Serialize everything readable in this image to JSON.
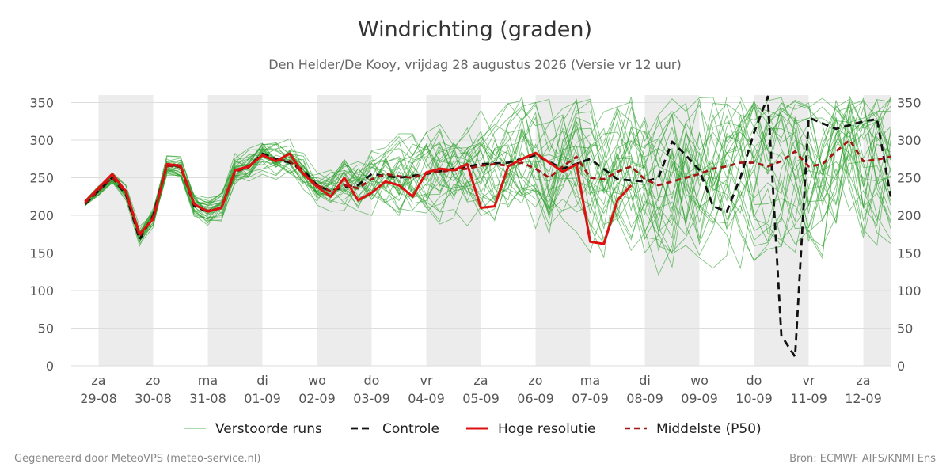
{
  "chart_data": {
    "type": "line",
    "title": "Windrichting (graden)",
    "subtitle": "Den Helder/De Kooy, vrijdag 28 augustus 2026 (Versie vr 12 uur)",
    "ylim": [
      0,
      360
    ],
    "yticks": [
      0,
      50,
      100,
      150,
      200,
      250,
      300,
      350
    ],
    "x_start": "2026-08-28T12:00",
    "x_end": "2026-09-12T12:00",
    "day_ticks": [
      {
        "date": "2026-08-29",
        "day": "za",
        "label": "29-08"
      },
      {
        "date": "2026-08-30",
        "day": "zo",
        "label": "30-08"
      },
      {
        "date": "2026-08-31",
        "day": "ma",
        "label": "31-08"
      },
      {
        "date": "2026-09-01",
        "day": "di",
        "label": "01-09"
      },
      {
        "date": "2026-09-02",
        "day": "wo",
        "label": "02-09"
      },
      {
        "date": "2026-09-03",
        "day": "do",
        "label": "03-09"
      },
      {
        "date": "2026-09-04",
        "day": "vr",
        "label": "04-09"
      },
      {
        "date": "2026-09-05",
        "day": "za",
        "label": "05-09"
      },
      {
        "date": "2026-09-06",
        "day": "zo",
        "label": "06-09"
      },
      {
        "date": "2026-09-07",
        "day": "ma",
        "label": "07-09"
      },
      {
        "date": "2026-09-08",
        "day": "di",
        "label": "08-09"
      },
      {
        "date": "2026-09-09",
        "day": "wo",
        "label": "09-09"
      },
      {
        "date": "2026-09-10",
        "day": "do",
        "label": "10-09"
      },
      {
        "date": "2026-09-11",
        "day": "vr",
        "label": "11-09"
      },
      {
        "date": "2026-09-12",
        "day": "za",
        "label": "12-09"
      }
    ],
    "shaded_days": [
      "2026-08-29",
      "2026-08-31",
      "2026-09-02",
      "2026-09-04",
      "2026-09-06",
      "2026-09-08",
      "2026-09-10",
      "2026-09-12"
    ],
    "legend_placement": "bottom",
    "series": [
      {
        "name": "Controle",
        "style": "dashed",
        "color": "#111111",
        "x": [
          "2026-08-28T18:00",
          "2026-08-29T06:00",
          "2026-08-29T12:00",
          "2026-08-29T18:00",
          "2026-08-30T00:00",
          "2026-08-30T06:00",
          "2026-08-30T12:00",
          "2026-08-30T18:00",
          "2026-08-31T00:00",
          "2026-08-31T06:00",
          "2026-08-31T12:00",
          "2026-08-31T18:00",
          "2026-09-01T00:00",
          "2026-09-01T06:00",
          "2026-09-01T12:00",
          "2026-09-01T18:00",
          "2026-09-02T00:00",
          "2026-09-02T06:00",
          "2026-09-02T12:00",
          "2026-09-02T18:00",
          "2026-09-03T00:00",
          "2026-09-03T12:00",
          "2026-09-04T00:00",
          "2026-09-04T12:00",
          "2026-09-05T00:00",
          "2026-09-05T12:00",
          "2026-09-06T00:00",
          "2026-09-06T12:00",
          "2026-09-07T00:00",
          "2026-09-07T12:00",
          "2026-09-08T00:00",
          "2026-09-08T06:00",
          "2026-09-08T12:00",
          "2026-09-08T18:00",
          "2026-09-09T00:00",
          "2026-09-09T06:00",
          "2026-09-09T12:00",
          "2026-09-09T18:00",
          "2026-09-10T00:00",
          "2026-09-10T06:00",
          "2026-09-10T12:00",
          "2026-09-10T18:00",
          "2026-09-11T00:00",
          "2026-09-11T12:00",
          "2026-09-12T00:00",
          "2026-09-12T06:00",
          "2026-09-12T12:00"
        ],
        "values": [
          215,
          250,
          228,
          168,
          200,
          268,
          265,
          212,
          205,
          210,
          260,
          265,
          282,
          275,
          270,
          260,
          240,
          232,
          238,
          240,
          255,
          250,
          255,
          262,
          268,
          270,
          280,
          262,
          275,
          248,
          245,
          250,
          298,
          280,
          260,
          212,
          205,
          250,
          310,
          358,
          40,
          12,
          330,
          315,
          325,
          328,
          225
        ]
      },
      {
        "name": "Hoge resolutie",
        "style": "solid",
        "color": "#dd1111",
        "x": [
          "2026-08-28T18:00",
          "2026-08-29T06:00",
          "2026-08-29T12:00",
          "2026-08-29T18:00",
          "2026-08-30T00:00",
          "2026-08-30T06:00",
          "2026-08-30T12:00",
          "2026-08-30T18:00",
          "2026-08-31T00:00",
          "2026-08-31T06:00",
          "2026-08-31T12:00",
          "2026-08-31T18:00",
          "2026-09-01T00:00",
          "2026-09-01T06:00",
          "2026-09-01T12:00",
          "2026-09-01T18:00",
          "2026-09-02T00:00",
          "2026-09-02T06:00",
          "2026-09-02T12:00",
          "2026-09-02T18:00",
          "2026-09-03T00:00",
          "2026-09-03T06:00",
          "2026-09-03T12:00",
          "2026-09-03T18:00",
          "2026-09-04T00:00",
          "2026-09-04T06:00",
          "2026-09-04T12:00",
          "2026-09-04T18:00",
          "2026-09-05T00:00",
          "2026-09-05T06:00",
          "2026-09-05T12:00",
          "2026-09-05T18:00",
          "2026-09-06T00:00",
          "2026-09-06T06:00",
          "2026-09-06T12:00",
          "2026-09-06T18:00",
          "2026-09-07T00:00",
          "2026-09-07T06:00",
          "2026-09-07T12:00",
          "2026-09-07T18:00"
        ],
        "values": [
          218,
          255,
          232,
          175,
          195,
          268,
          266,
          215,
          205,
          210,
          260,
          265,
          280,
          272,
          282,
          255,
          238,
          225,
          250,
          220,
          230,
          245,
          240,
          225,
          257,
          262,
          260,
          268,
          210,
          212,
          265,
          275,
          283,
          270,
          258,
          268,
          165,
          162,
          220,
          240
        ]
      },
      {
        "name": "Middelste (P50)",
        "style": "dashed",
        "color": "#a31515",
        "x": [
          "2026-08-28T18:00",
          "2026-08-29T06:00",
          "2026-08-29T12:00",
          "2026-08-29T18:00",
          "2026-08-30T00:00",
          "2026-08-30T06:00",
          "2026-08-30T12:00",
          "2026-08-30T18:00",
          "2026-08-31T00:00",
          "2026-08-31T06:00",
          "2026-08-31T12:00",
          "2026-08-31T18:00",
          "2026-09-01T00:00",
          "2026-09-01T06:00",
          "2026-09-01T12:00",
          "2026-09-01T18:00",
          "2026-09-02T00:00",
          "2026-09-02T06:00",
          "2026-09-02T12:00",
          "2026-09-02T18:00",
          "2026-09-03T00:00",
          "2026-09-03T06:00",
          "2026-09-03T12:00",
          "2026-09-03T18:00",
          "2026-09-04T00:00",
          "2026-09-04T06:00",
          "2026-09-04T12:00",
          "2026-09-04T18:00",
          "2026-09-05T00:00",
          "2026-09-05T06:00",
          "2026-09-05T12:00",
          "2026-09-05T18:00",
          "2026-09-06T00:00",
          "2026-09-06T06:00",
          "2026-09-06T12:00",
          "2026-09-06T18:00",
          "2026-09-07T00:00",
          "2026-09-07T06:00",
          "2026-09-07T12:00",
          "2026-09-07T18:00",
          "2026-09-08T00:00",
          "2026-09-08T06:00",
          "2026-09-08T12:00",
          "2026-09-08T18:00",
          "2026-09-09T00:00",
          "2026-09-09T06:00",
          "2026-09-09T12:00",
          "2026-09-09T18:00",
          "2026-09-10T00:00",
          "2026-09-10T06:00",
          "2026-09-10T12:00",
          "2026-09-10T18:00",
          "2026-09-11T00:00",
          "2026-09-11T06:00",
          "2026-09-11T12:00",
          "2026-09-11T18:00",
          "2026-09-12T00:00",
          "2026-09-12T06:00",
          "2026-09-12T12:00"
        ],
        "values": [
          216,
          250,
          230,
          172,
          198,
          266,
          264,
          214,
          206,
          210,
          258,
          264,
          280,
          274,
          272,
          256,
          240,
          232,
          240,
          236,
          248,
          255,
          252,
          250,
          256,
          258,
          260,
          262,
          266,
          268,
          266,
          270,
          262,
          250,
          265,
          278,
          250,
          248,
          258,
          265,
          248,
          240,
          245,
          250,
          255,
          262,
          265,
          270,
          270,
          265,
          272,
          285,
          265,
          268,
          285,
          300,
          272,
          274,
          278
        ]
      }
    ],
    "ensemble": {
      "name": "Verstoorde runs",
      "color": "#2ca02c",
      "members": 30
    }
  },
  "legend": [
    {
      "key": "ensemble",
      "label": "Verstoorde runs"
    },
    {
      "key": "control",
      "label": "Controle"
    },
    {
      "key": "hires",
      "label": "Hoge resolutie"
    },
    {
      "key": "p50",
      "label": "Middelste (P50)"
    }
  ],
  "footer": {
    "left": "Gegenereerd door MeteoVPS (meteo-service.nl)",
    "right": "Bron: ECMWF AIFS/KNMI Ens"
  }
}
